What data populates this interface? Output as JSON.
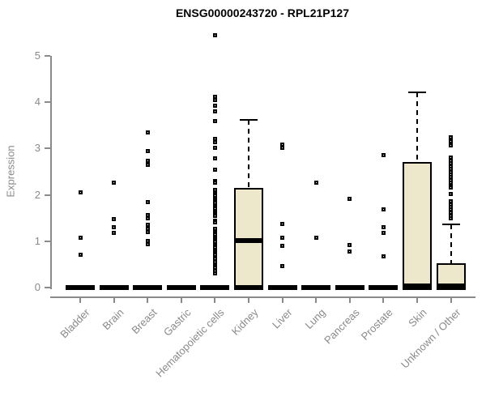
{
  "chart_data": {
    "type": "boxplot",
    "title": "ENSG00000243720 - RPL21P127",
    "ylabel": "Expression",
    "xlabel": "",
    "yticks": [
      0,
      1,
      2,
      3,
      4,
      5
    ],
    "ylim": [
      0,
      5.6
    ],
    "grid": false,
    "legend": null,
    "colors": {
      "box_fill": "#ede7cb",
      "box_border": "#000000",
      "point": "#000000",
      "axis": "#8a8a8a",
      "tick_label": "#8a8a8a",
      "title": "#000000"
    },
    "categories": [
      "Bladder",
      "Brain",
      "Breast",
      "Gastric",
      "Hematopoietic cells",
      "Kidney",
      "Liver",
      "Lung",
      "Pancreas",
      "Prostate",
      "Skin",
      "Unknown / Other"
    ],
    "series": [
      {
        "name": "Bladder",
        "box": {
          "q1": 0,
          "median": 0,
          "q3": 0,
          "whisker_low": 0,
          "whisker_high": 0
        },
        "outliers": [
          2.06,
          1.08,
          0.7
        ]
      },
      {
        "name": "Brain",
        "box": {
          "q1": 0,
          "median": 0,
          "q3": 0,
          "whisker_low": 0,
          "whisker_high": 0
        },
        "outliers": [
          2.27,
          1.48,
          1.3,
          1.18
        ]
      },
      {
        "name": "Breast",
        "box": {
          "q1": 0,
          "median": 0,
          "q3": 0,
          "whisker_low": 0,
          "whisker_high": 0
        },
        "outliers": [
          3.34,
          2.95,
          2.73,
          2.65,
          1.85,
          1.57,
          1.5,
          1.35,
          1.27,
          1.19,
          1.0,
          0.93
        ]
      },
      {
        "name": "Gastric",
        "box": {
          "q1": 0,
          "median": 0,
          "q3": 0,
          "whisker_low": 0,
          "whisker_high": 0
        },
        "outliers": []
      },
      {
        "name": "Hematopoietic cells",
        "box": {
          "q1": 0,
          "median": 0,
          "q3": 0,
          "whisker_low": 0,
          "whisker_high": 0
        },
        "outliers": [
          5.45,
          4.12,
          4.05,
          3.93,
          3.81,
          3.6,
          3.2,
          3.13,
          3.02,
          2.79,
          2.55,
          2.3,
          2.27,
          2.1,
          2.06,
          2.02,
          1.98,
          1.94,
          1.9,
          1.86,
          1.82,
          1.78,
          1.74,
          1.7,
          1.66,
          1.62,
          1.58,
          1.54,
          1.45,
          1.4,
          1.26,
          1.22,
          1.18,
          1.14,
          1.1,
          1.06,
          1.02,
          0.98,
          0.94,
          0.9,
          0.86,
          0.82,
          0.78,
          0.74,
          0.7,
          0.66,
          0.62,
          0.55,
          0.47,
          0.42,
          0.36,
          0.3
        ]
      },
      {
        "name": "Kidney",
        "box": {
          "q1": 0,
          "median": 1.02,
          "q3": 2.15,
          "whisker_low": 0,
          "whisker_high": 3.62
        },
        "outliers": []
      },
      {
        "name": "Liver",
        "box": {
          "q1": 0,
          "median": 0,
          "q3": 0,
          "whisker_low": 0,
          "whisker_high": 0
        },
        "outliers": [
          3.08,
          3.02,
          1.38,
          1.08,
          0.9,
          0.47
        ]
      },
      {
        "name": "Lung",
        "box": {
          "q1": 0,
          "median": 0,
          "q3": 0,
          "whisker_low": 0,
          "whisker_high": 0
        },
        "outliers": [
          2.27,
          1.08
        ]
      },
      {
        "name": "Pancreas",
        "box": {
          "q1": 0,
          "median": 0,
          "q3": 0,
          "whisker_low": 0,
          "whisker_high": 0
        },
        "outliers": [
          1.92,
          0.92,
          0.78
        ]
      },
      {
        "name": "Prostate",
        "box": {
          "q1": 0,
          "median": 0,
          "q3": 0,
          "whisker_low": 0,
          "whisker_high": 0
        },
        "outliers": [
          2.85,
          1.69,
          1.3,
          1.18,
          0.67
        ]
      },
      {
        "name": "Skin",
        "box": {
          "q1": 0,
          "median": 0.03,
          "q3": 2.71,
          "whisker_low": 0,
          "whisker_high": 4.22
        },
        "outliers": []
      },
      {
        "name": "Unknown / Other",
        "box": {
          "q1": 0,
          "median": 0.03,
          "q3": 0.53,
          "whisker_low": 0,
          "whisker_high": 1.37
        },
        "outliers": [
          3.24,
          3.15,
          3.06,
          2.8,
          2.74,
          2.68,
          2.62,
          2.56,
          2.5,
          2.44,
          2.38,
          2.32,
          2.26,
          2.2,
          2.16,
          2.02,
          1.86,
          1.8,
          1.74,
          1.68,
          1.62,
          1.55,
          1.49
        ]
      }
    ]
  }
}
